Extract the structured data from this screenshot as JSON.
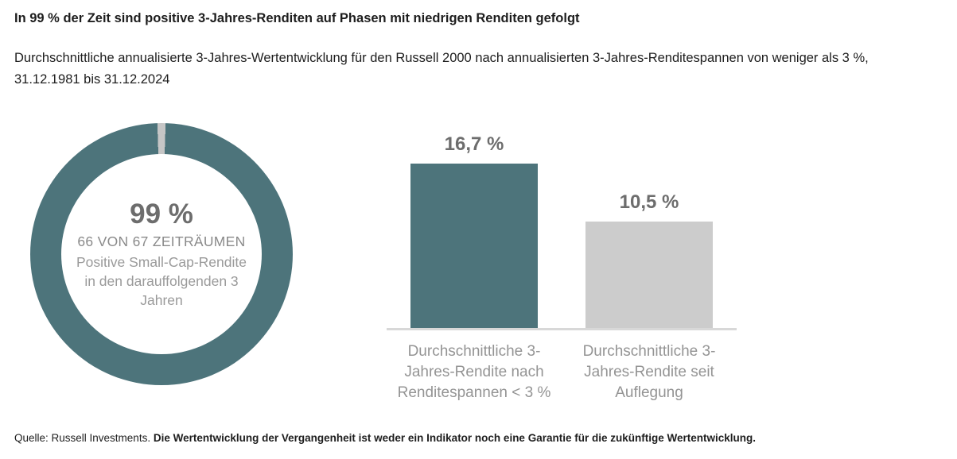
{
  "page": {
    "title": "In 99 % der Zeit sind positive 3-Jahres-Renditen auf Phasen mit niedrigen Renditen gefolgt",
    "subtitle": "Durchschnittliche annualisierte 3-Jahres-Wertentwicklung für den Russell 2000 nach annualisierten 3-Jahres-Renditespannen von weniger als 3 %, 31.12.1981 bis 31.12.2024",
    "footer": {
      "source": "Quelle: Russell Investments.",
      "disclaimer": "Die Wertentwicklung der Vergangenheit ist weder ein Indikator noch eine Garantie für die zukünftige Wertentwicklung."
    }
  },
  "colors": {
    "teal": "#4d747b",
    "bar_gray": "#cccccc",
    "slice_gray": "#c6c6c6",
    "value_text": "#6d6d6d",
    "label_text": "#949494",
    "baseline": "#d8d8d8"
  },
  "chart_data": [
    {
      "type": "pie",
      "subtype": "donut",
      "values": [
        99,
        1
      ],
      "unit": "%",
      "slice_colors": [
        "#4d747b",
        "#c6c6c6"
      ],
      "center": {
        "value_label": "99 %",
        "line1": "66 VON 67 ZEITRÄUMEN",
        "line2": "Positive Small-Cap-Rendite in den darauffolgenden 3 Jahren"
      }
    },
    {
      "type": "bar",
      "categories": [
        "Durchschnittliche 3-Jahres-Rendite nach Renditespannen < 3 %",
        "Durchschnittliche 3-Jahres-Rendite seit Auflegung"
      ],
      "values": [
        16.7,
        10.5
      ],
      "value_labels": [
        "16,7 %",
        "10,5 %"
      ],
      "bar_colors": [
        "#4d747b",
        "#cccccc"
      ],
      "ylim": [
        0,
        18
      ],
      "grid": false,
      "legend": "none"
    }
  ]
}
